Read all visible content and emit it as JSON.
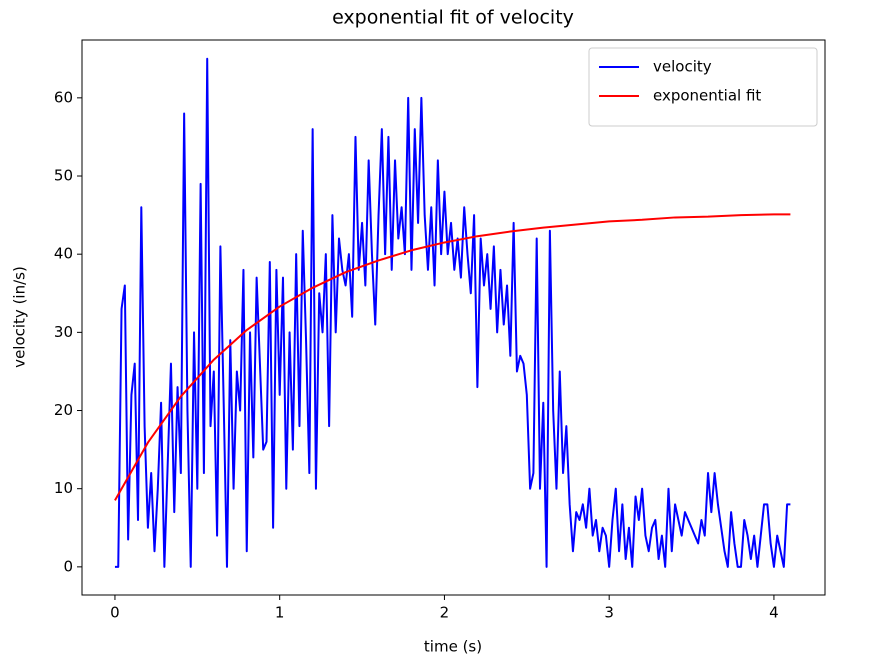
{
  "chart_data": {
    "type": "line",
    "title": "exponential fit of velocity",
    "x_label": "time (s)",
    "y_label": "velocity (in/s)",
    "xlim": [
      -0.2,
      4.31
    ],
    "ylim": [
      -3.6,
      67.4
    ],
    "xticks": [
      0,
      1,
      2,
      3,
      4
    ],
    "yticks": [
      0,
      10,
      20,
      30,
      40,
      50,
      60
    ],
    "grid": false,
    "legend": "upper right",
    "series": [
      {
        "name": "velocity",
        "color": "#0000ff",
        "x": [
          0,
          0.02,
          0.04,
          0.06,
          0.08,
          0.1,
          0.12,
          0.14,
          0.16,
          0.18,
          0.2,
          0.22,
          0.24,
          0.26,
          0.28,
          0.3,
          0.32,
          0.34,
          0.36,
          0.38,
          0.4,
          0.42,
          0.44,
          0.46,
          0.48,
          0.5,
          0.52,
          0.54,
          0.56,
          0.58,
          0.6,
          0.62,
          0.64,
          0.66,
          0.68,
          0.7,
          0.72,
          0.74,
          0.76,
          0.78,
          0.8,
          0.82,
          0.84,
          0.86,
          0.88,
          0.9,
          0.92,
          0.94,
          0.96,
          0.98,
          1.0,
          1.02,
          1.04,
          1.06,
          1.08,
          1.1,
          1.12,
          1.14,
          1.16,
          1.18,
          1.2,
          1.22,
          1.24,
          1.26,
          1.28,
          1.3,
          1.32,
          1.34,
          1.36,
          1.38,
          1.4,
          1.42,
          1.44,
          1.46,
          1.48,
          1.5,
          1.52,
          1.54,
          1.56,
          1.58,
          1.6,
          1.62,
          1.64,
          1.66,
          1.68,
          1.7,
          1.72,
          1.74,
          1.76,
          1.78,
          1.8,
          1.82,
          1.84,
          1.86,
          1.88,
          1.9,
          1.92,
          1.94,
          1.96,
          1.98,
          2.0,
          2.02,
          2.04,
          2.06,
          2.08,
          2.1,
          2.12,
          2.14,
          2.16,
          2.18,
          2.2,
          2.22,
          2.24,
          2.26,
          2.28,
          2.3,
          2.32,
          2.34,
          2.36,
          2.38,
          2.4,
          2.42,
          2.44,
          2.46,
          2.48,
          2.5,
          2.52,
          2.54,
          2.56,
          2.58,
          2.6,
          2.62,
          2.64,
          2.66,
          2.68,
          2.7,
          2.72,
          2.74,
          2.76,
          2.78,
          2.8,
          2.82,
          2.84,
          2.86,
          2.88,
          2.9,
          2.92,
          2.94,
          2.96,
          2.98,
          3.0,
          3.02,
          3.04,
          3.06,
          3.08,
          3.1,
          3.12,
          3.14,
          3.16,
          3.18,
          3.2,
          3.22,
          3.24,
          3.26,
          3.28,
          3.3,
          3.32,
          3.34,
          3.36,
          3.38,
          3.4,
          3.42,
          3.44,
          3.46,
          3.48,
          3.5,
          3.52,
          3.54,
          3.56,
          3.58,
          3.6,
          3.62,
          3.64,
          3.66,
          3.68,
          3.7,
          3.72,
          3.74,
          3.76,
          3.78,
          3.8,
          3.82,
          3.84,
          3.86,
          3.88,
          3.9,
          3.92,
          3.94,
          3.96,
          3.98,
          4.0,
          4.02,
          4.04,
          4.06,
          4.08,
          4.1
        ],
        "values": [
          0,
          0,
          33,
          36,
          3.5,
          22,
          26,
          6,
          46,
          18,
          5,
          12,
          2,
          10,
          21,
          0,
          13,
          26,
          7,
          23,
          12,
          58,
          20,
          0,
          30,
          10,
          49,
          12,
          65,
          18,
          25,
          4,
          41,
          21,
          0,
          29,
          10,
          25,
          20,
          38,
          2,
          30,
          14,
          37,
          26,
          15,
          16,
          39,
          5,
          38,
          22,
          37,
          10,
          30,
          15,
          40,
          18,
          43,
          29,
          12,
          56,
          10,
          35,
          30,
          40,
          18,
          45,
          30,
          42,
          38,
          36,
          40,
          32,
          55,
          38,
          44,
          36,
          52,
          40,
          31,
          45,
          56,
          40,
          55,
          38,
          52,
          42,
          46,
          40,
          60,
          38,
          56,
          44,
          60,
          45,
          38,
          46,
          36,
          52,
          40,
          48,
          40,
          44,
          38,
          42,
          37,
          46,
          40,
          35,
          45,
          23,
          42,
          36,
          40,
          33,
          41,
          30,
          38,
          31,
          36,
          27,
          44,
          25,
          27,
          26,
          22,
          10,
          12,
          42,
          10,
          21,
          0,
          43,
          20,
          10,
          25,
          12,
          18,
          8,
          2,
          7,
          6,
          8,
          5,
          10,
          4,
          6,
          2,
          5,
          4,
          0,
          6,
          10,
          2,
          8,
          1,
          5,
          0,
          9,
          6,
          10,
          4,
          2,
          5,
          6,
          1,
          4,
          0,
          10,
          2,
          8,
          6,
          4,
          7,
          6,
          5,
          4,
          3,
          6,
          4,
          12,
          7,
          12,
          8,
          5,
          2,
          0,
          7,
          3,
          0,
          0,
          6,
          4,
          1,
          4,
          0,
          4,
          8,
          8,
          3,
          0,
          4,
          2,
          0,
          8,
          8
        ]
      },
      {
        "name": "exponential fit",
        "color": "#ff0000",
        "x": [
          0,
          0.2,
          0.4,
          0.6,
          0.8,
          1.0,
          1.2,
          1.4,
          1.6,
          1.8,
          2.0,
          2.2,
          2.4,
          2.6,
          2.8,
          3.0,
          3.2,
          3.4,
          3.6,
          3.8,
          4.0,
          4.1
        ],
        "values": [
          8.5,
          15.9,
          21.8,
          26.5,
          30.3,
          33.3,
          35.7,
          37.7,
          39.2,
          40.5,
          41.5,
          42.3,
          42.9,
          43.4,
          43.8,
          44.2,
          44.4,
          44.7,
          44.8,
          45.0,
          45.1,
          45.1
        ]
      }
    ]
  }
}
